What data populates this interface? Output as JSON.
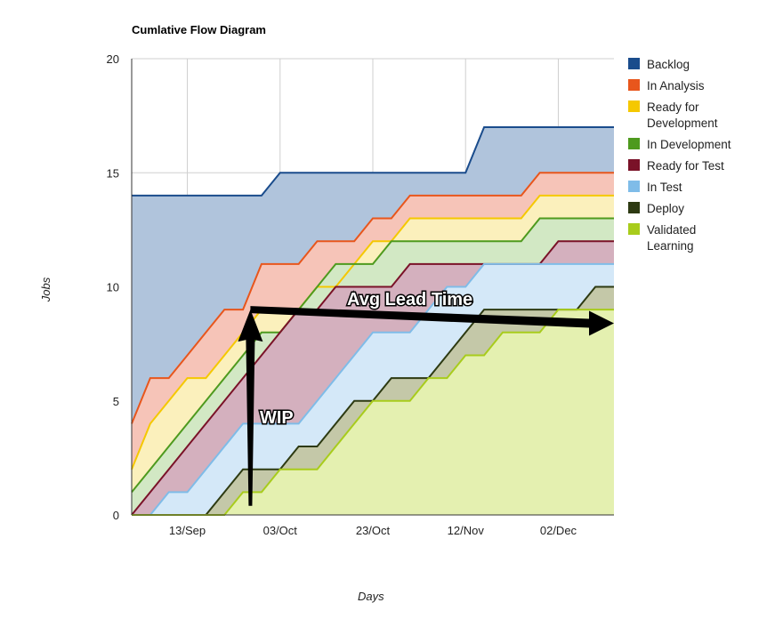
{
  "chart_data": {
    "type": "area",
    "title": "Cumlative Flow Diagram",
    "xlabel": "Days",
    "ylabel": "Jobs",
    "ylim": [
      0,
      20
    ],
    "yticks": [
      0,
      5,
      10,
      15,
      20
    ],
    "xticks": [
      {
        "x": 3,
        "label": "13/Sep"
      },
      {
        "x": 8,
        "label": "03/Oct"
      },
      {
        "x": 13,
        "label": "23/Oct"
      },
      {
        "x": 18,
        "label": "12/Nov"
      },
      {
        "x": 23,
        "label": "02/Dec"
      }
    ],
    "xlim": [
      0,
      26
    ],
    "grid": true,
    "legend_position": "right",
    "x": [
      0,
      1,
      2,
      3,
      4,
      5,
      6,
      7,
      8,
      9,
      10,
      11,
      12,
      13,
      14,
      15,
      16,
      17,
      18,
      19,
      20,
      21,
      22,
      23,
      24,
      25,
      26
    ],
    "series": [
      {
        "name": "Backlog",
        "color": "#1a4c8c",
        "fill": "#b0c4dc",
        "values": [
          14,
          14,
          14,
          14,
          14,
          14,
          14,
          14,
          15,
          15,
          15,
          15,
          15,
          15,
          15,
          15,
          15,
          15,
          15,
          17,
          17,
          17,
          17,
          17,
          17,
          17,
          17
        ]
      },
      {
        "name": "In Analysis",
        "color": "#e8561c",
        "fill": "#f6c4b8",
        "values": [
          4,
          6,
          6,
          7,
          8,
          9,
          9,
          11,
          11,
          11,
          12,
          12,
          12,
          13,
          13,
          14,
          14,
          14,
          14,
          14,
          14,
          14,
          15,
          15,
          15,
          15,
          15
        ]
      },
      {
        "name": "Ready for Development",
        "color": "#f5c800",
        "fill": "#fbf0bc",
        "values": [
          2,
          4,
          5,
          6,
          6,
          7,
          8,
          9,
          9,
          9,
          10,
          10,
          11,
          12,
          12,
          13,
          13,
          13,
          13,
          13,
          13,
          13,
          14,
          14,
          14,
          14,
          14
        ]
      },
      {
        "name": "In Development",
        "color": "#4e9a1e",
        "fill": "#d2e8c4",
        "values": [
          1,
          2,
          3,
          4,
          5,
          6,
          7,
          8,
          8,
          9,
          10,
          11,
          11,
          11,
          12,
          12,
          12,
          12,
          12,
          12,
          12,
          12,
          13,
          13,
          13,
          13,
          13
        ]
      },
      {
        "name": "Ready for Test",
        "color": "#7a1228",
        "fill": "#d4b0be",
        "values": [
          0,
          1,
          2,
          3,
          4,
          5,
          6,
          7,
          8,
          9,
          9,
          10,
          10,
          10,
          10,
          11,
          11,
          11,
          11,
          11,
          11,
          11,
          11,
          12,
          12,
          12,
          12
        ]
      },
      {
        "name": "In Test",
        "color": "#7fbce8",
        "fill": "#d4e8f8",
        "values": [
          0,
          0,
          1,
          1,
          2,
          3,
          4,
          4,
          4,
          4,
          5,
          6,
          7,
          8,
          8,
          8,
          9,
          10,
          10,
          11,
          11,
          11,
          11,
          11,
          11,
          11,
          11
        ]
      },
      {
        "name": "Deploy",
        "color": "#2d3a12",
        "fill": "#c4c8a8",
        "values": [
          0,
          0,
          0,
          0,
          0,
          1,
          2,
          2,
          2,
          3,
          3,
          4,
          5,
          5,
          6,
          6,
          6,
          7,
          8,
          9,
          9,
          9,
          9,
          9,
          9,
          10,
          10
        ]
      },
      {
        "name": "Validated Learning",
        "color": "#a8cc1c",
        "fill": "#e4f0b0",
        "values": [
          0,
          0,
          0,
          0,
          0,
          0,
          1,
          1,
          2,
          2,
          2,
          3,
          4,
          5,
          5,
          5,
          6,
          6,
          7,
          7,
          8,
          8,
          8,
          9,
          9,
          9,
          9
        ]
      }
    ],
    "annotations": [
      {
        "text": "Avg Lead Time",
        "kind": "horizontal-arrow",
        "from": [
          6.4,
          9
        ],
        "to": [
          26,
          8.4
        ]
      },
      {
        "text": "WIP",
        "kind": "vertical-arrow",
        "from": [
          6.4,
          0.4
        ],
        "to": [
          6.4,
          9
        ]
      }
    ]
  }
}
